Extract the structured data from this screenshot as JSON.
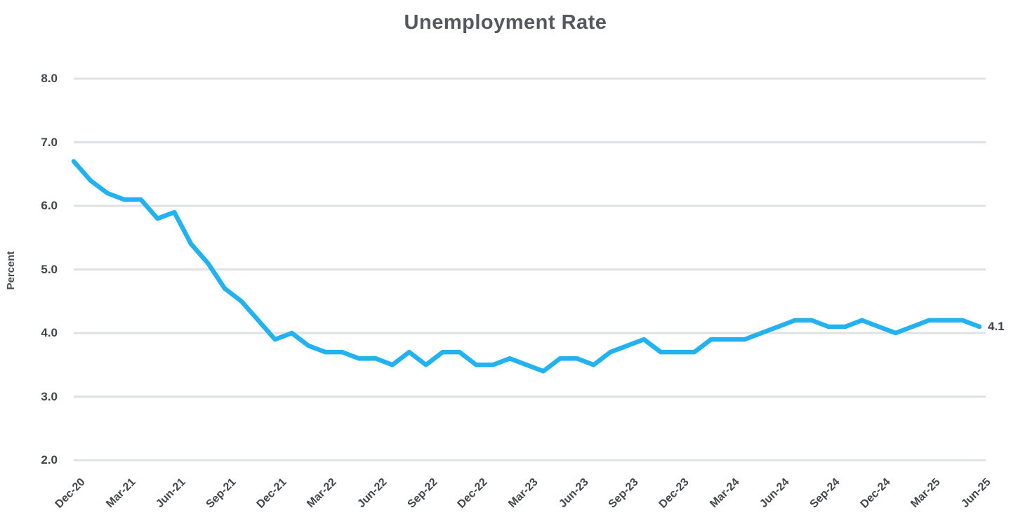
{
  "page_title": "Unemployment Rate",
  "colors": {
    "line": "#22b2ef",
    "gridline": "#dfe1e2",
    "title_text": "#54575b",
    "tick_text": "#3f4447"
  },
  "chart_data": {
    "type": "line",
    "title": "Unemployment Rate",
    "ylabel": "Percent",
    "xlabel": "",
    "ylim": [
      2.0,
      8.0
    ],
    "yticks": [
      "8.0",
      "7.0",
      "6.0",
      "5.0",
      "4.0",
      "3.0",
      "2.0"
    ],
    "grid": "horizontal",
    "legend": "none",
    "x_tick_labels": [
      "Dec-20",
      "Mar-21",
      "Jun-21",
      "Sep-21",
      "Dec-21",
      "Mar-22",
      "Jun-22",
      "Sep-22",
      "Dec-22",
      "Mar-23",
      "Jun-23",
      "Sep-23",
      "Dec-23",
      "Mar-24",
      "Jun-24",
      "Sep-24",
      "Dec-24",
      "Mar-25",
      "Jun-25"
    ],
    "x": [
      "Dec-20",
      "Jan-21",
      "Feb-21",
      "Mar-21",
      "Apr-21",
      "May-21",
      "Jun-21",
      "Jul-21",
      "Aug-21",
      "Sep-21",
      "Oct-21",
      "Nov-21",
      "Dec-21",
      "Jan-22",
      "Feb-22",
      "Mar-22",
      "Apr-22",
      "May-22",
      "Jun-22",
      "Jul-22",
      "Aug-22",
      "Sep-22",
      "Oct-22",
      "Nov-22",
      "Dec-22",
      "Jan-23",
      "Feb-23",
      "Mar-23",
      "Apr-23",
      "May-23",
      "Jun-23",
      "Jul-23",
      "Aug-23",
      "Sep-23",
      "Oct-23",
      "Nov-23",
      "Dec-23",
      "Jan-24",
      "Feb-24",
      "Mar-24",
      "Apr-24",
      "May-24",
      "Jun-24",
      "Jul-24",
      "Aug-24",
      "Sep-24",
      "Oct-24",
      "Nov-24",
      "Dec-24",
      "Jan-25",
      "Feb-25",
      "Mar-25",
      "Apr-25",
      "May-25",
      "Jun-25"
    ],
    "series": [
      {
        "name": "Unemployment Rate",
        "values": [
          6.7,
          6.4,
          6.2,
          6.1,
          6.1,
          5.8,
          5.9,
          5.4,
          5.1,
          4.7,
          4.5,
          4.2,
          3.9,
          4.0,
          3.8,
          3.7,
          3.7,
          3.6,
          3.6,
          3.5,
          3.7,
          3.5,
          3.7,
          3.7,
          3.5,
          3.5,
          3.6,
          3.5,
          3.4,
          3.6,
          3.6,
          3.5,
          3.7,
          3.8,
          3.9,
          3.7,
          3.7,
          3.7,
          3.9,
          3.9,
          3.9,
          4.0,
          4.1,
          4.2,
          4.2,
          4.1,
          4.1,
          4.2,
          4.1,
          4.0,
          4.1,
          4.2,
          4.2,
          4.2,
          4.1
        ]
      }
    ],
    "end_label": "4.1"
  }
}
